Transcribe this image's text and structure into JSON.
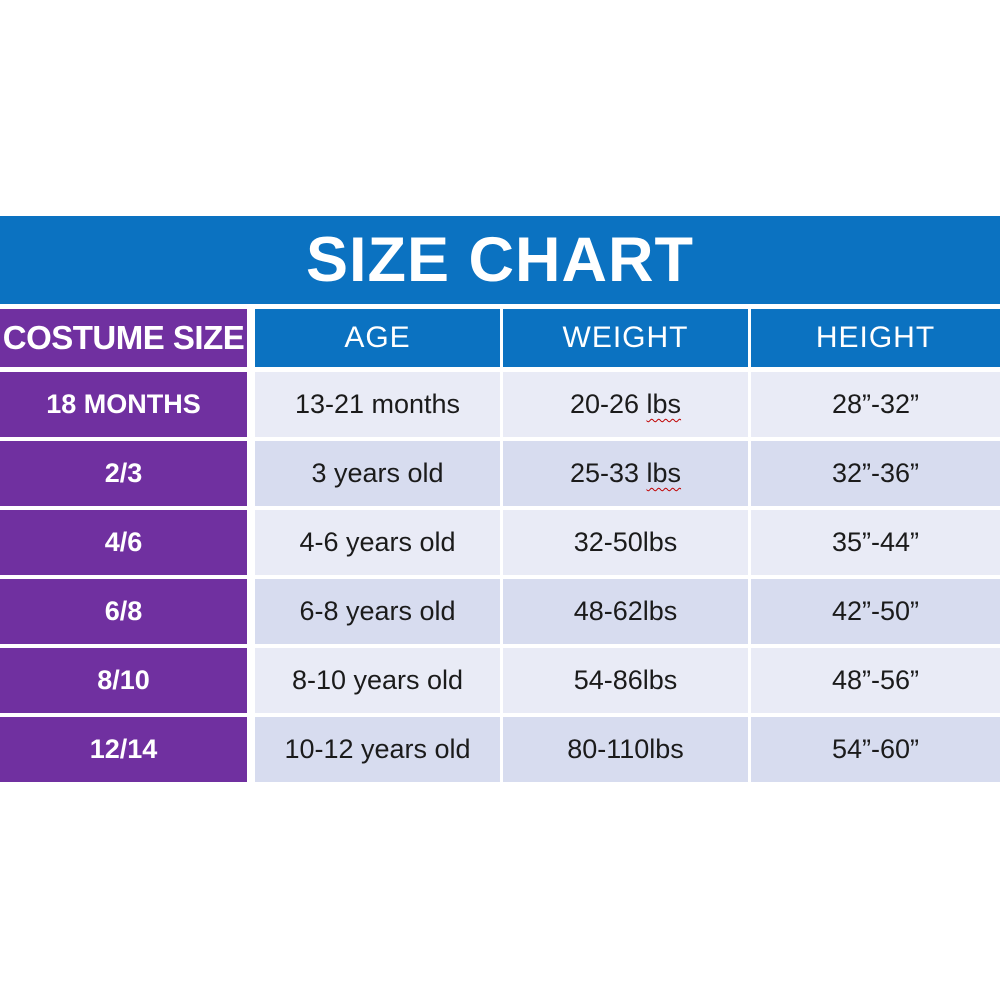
{
  "title": "SIZE CHART",
  "colors": {
    "band_blue": "#0b72c1",
    "header_purple": "#7030a0",
    "row_light": "#e9ebf6",
    "row_dark": "#d7dcef",
    "squiggle_red": "#c00000",
    "text_dark": "#1b1b1b",
    "text_white": "#ffffff"
  },
  "chart_data": {
    "type": "table",
    "title": "SIZE CHART",
    "columns": [
      "COSTUME SIZE",
      "AGE",
      "WEIGHT",
      "HEIGHT"
    ],
    "rows": [
      [
        "18 MONTHS",
        "13-21 months",
        "20-26 lbs",
        "28”-32”"
      ],
      [
        "2/3",
        "3 years old",
        "25-33 lbs",
        "32”-36”"
      ],
      [
        "4/6",
        "4-6 years old",
        "32-50lbs",
        "35”-44”"
      ],
      [
        "6/8",
        "6-8 years old",
        "48-62lbs",
        "42”-50”"
      ],
      [
        "8/10",
        "8-10 years old",
        "54-86lbs",
        "48”-56”"
      ],
      [
        "12/14",
        "10-12 years old",
        "80-110lbs",
        "54”-60”"
      ]
    ]
  },
  "table": {
    "headers": {
      "size": "COSTUME SIZE",
      "age": "AGE",
      "weight": "WEIGHT",
      "height": "HEIGHT"
    },
    "rows": [
      {
        "size": "18 MONTHS",
        "age": "13-21 months",
        "weight_value": "20-26 ",
        "weight_unit": "lbs",
        "height": "28”-32”"
      },
      {
        "size": "2/3",
        "age": "3 years old",
        "weight_value": "25-33 ",
        "weight_unit": "lbs",
        "height": "32”-36”"
      },
      {
        "size": "4/6",
        "age": "4-6 years old",
        "weight": "32-50lbs",
        "height": "35”-44”"
      },
      {
        "size": "6/8",
        "age": "6-8 years old",
        "weight": "48-62lbs",
        "height": "42”-50”"
      },
      {
        "size": "8/10",
        "age": "8-10 years old",
        "weight": "54-86lbs",
        "height": "48”-56”"
      },
      {
        "size": "12/14",
        "age": "10-12 years old",
        "weight": "80-110lbs",
        "height": "54”-60”"
      }
    ]
  }
}
